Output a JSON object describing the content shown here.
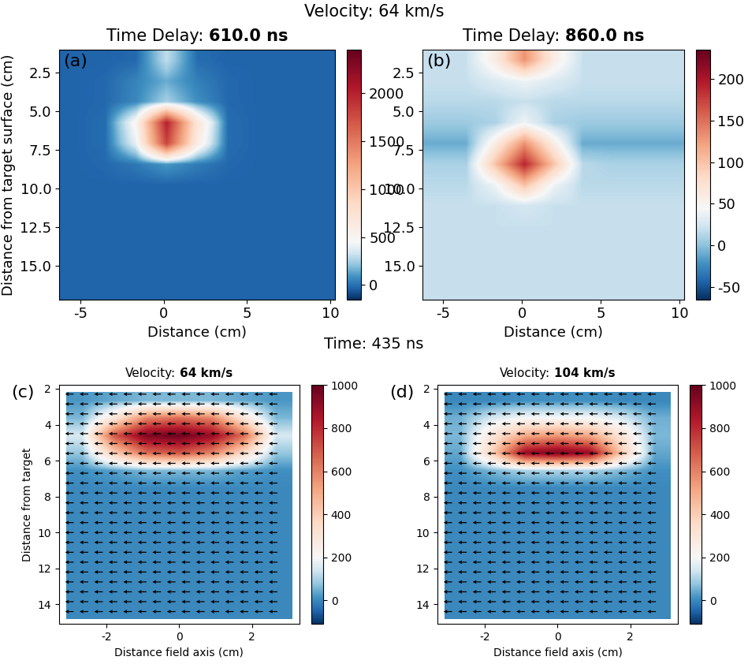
{
  "figure_title": "Velocity: 64 km/s",
  "section_title": "Time: 435 ns",
  "chart_data": [
    {
      "type": "heatmap",
      "panel": "(a)",
      "title_prefix": "Time Delay:",
      "title_value": "610.0 ns",
      "xlabel": "Distance (cm)",
      "ylabel": "Distance from target surface (cm)",
      "x_range": [
        -6.3,
        10.3
      ],
      "y_range": [
        1.0,
        17.2
      ],
      "xlim": [
        -6.3,
        10.3
      ],
      "ylim": [
        17.2,
        1.0
      ],
      "xticks": [
        -5,
        0,
        5,
        10
      ],
      "yticks": [
        2.5,
        {
          "value": 5,
          "label": "5.0"
        },
        7.5,
        {
          "value": 10,
          "label": "10.0"
        },
        12.5,
        {
          "value": 15,
          "label": "15.0"
        }
      ],
      "clim": [
        -150,
        2450
      ],
      "color_center": 450,
      "cticks": [
        0,
        500,
        1000,
        1500,
        2000
      ],
      "cells": [
        [
          -30,
          -30,
          -20,
          300,
          -10,
          -30,
          -30,
          -30,
          -30
        ],
        [
          -30,
          -20,
          50,
          150,
          40,
          -20,
          -30,
          -30,
          -30
        ],
        [
          -30,
          -20,
          60,
          250,
          80,
          -20,
          -30,
          -30,
          -30
        ],
        [
          -30,
          -10,
          500,
          2000,
          700,
          -10,
          -30,
          -30,
          -30
        ],
        [
          -30,
          -10,
          400,
          1800,
          600,
          -10,
          -30,
          -30,
          -30
        ],
        [
          -30,
          -20,
          20,
          100,
          30,
          -20,
          -30,
          -30,
          -30
        ],
        [
          -30,
          -30,
          -30,
          -30,
          -30,
          -30,
          -30,
          -30,
          -30
        ],
        [
          -30,
          -30,
          -30,
          -30,
          -30,
          -30,
          -30,
          -30,
          -30
        ],
        [
          -30,
          -30,
          -30,
          -30,
          -30,
          -30,
          -30,
          -30,
          -30
        ],
        [
          -30,
          -30,
          -30,
          -30,
          -30,
          -30,
          -30,
          -30,
          -30
        ],
        [
          -30,
          -30,
          -30,
          -30,
          -30,
          -30,
          -30,
          -30,
          -30
        ],
        [
          -30,
          -30,
          -30,
          -30,
          -30,
          -30,
          -30,
          -30,
          -30
        ]
      ]
    },
    {
      "type": "heatmap",
      "panel": "(b)",
      "title_prefix": "Time Delay:",
      "title_value": "860.0 ns",
      "xlabel": "Distance (cm)",
      "x_range": [
        -6.3,
        10.3
      ],
      "y_range": [
        1.0,
        17.2
      ],
      "xlim": [
        -6.3,
        10.3
      ],
      "ylim": [
        17.2,
        1.0
      ],
      "xticks": [
        -5,
        0,
        5,
        10
      ],
      "yticks": [
        2.5,
        {
          "value": 5,
          "label": "5.0"
        },
        7.5,
        {
          "value": 10,
          "label": "10.0"
        },
        12.5,
        {
          "value": 15,
          "label": "15.0"
        }
      ],
      "clim": [
        -65,
        235
      ],
      "color_center": 45,
      "cticks": [
        -50,
        0,
        50,
        100,
        150,
        200
      ],
      "cells": [
        [
          20,
          20,
          60,
          130,
          60,
          20,
          20,
          20,
          20
        ],
        [
          20,
          20,
          30,
          40,
          30,
          20,
          20,
          20,
          20
        ],
        [
          15,
          15,
          15,
          20,
          15,
          15,
          15,
          15,
          15
        ],
        [
          5,
          5,
          10,
          40,
          10,
          5,
          5,
          5,
          5
        ],
        [
          -10,
          -10,
          60,
          130,
          60,
          -10,
          -10,
          -10,
          -10
        ],
        [
          10,
          10,
          100,
          190,
          100,
          15,
          10,
          10,
          10
        ],
        [
          15,
          15,
          40,
          100,
          40,
          15,
          15,
          15,
          15
        ],
        [
          20,
          20,
          20,
          25,
          20,
          20,
          20,
          20,
          20
        ],
        [
          20,
          20,
          20,
          20,
          20,
          20,
          20,
          20,
          20
        ],
        [
          20,
          20,
          20,
          20,
          20,
          20,
          20,
          20,
          20
        ],
        [
          20,
          20,
          20,
          20,
          20,
          20,
          20,
          20,
          20
        ],
        [
          20,
          20,
          20,
          20,
          20,
          20,
          20,
          20,
          20
        ]
      ]
    },
    {
      "type": "heatmap",
      "panel": "(c)",
      "title_prefix": "Velocity:",
      "title_value": "64 km/s",
      "xlabel": "Distance field axis (cm)",
      "ylabel": "Distance from target",
      "x_range": [
        -3.1,
        3.1
      ],
      "y_range": [
        2.2,
        14.8
      ],
      "xlim": [
        -3.3,
        3.3
      ],
      "ylim": [
        15.1,
        1.8
      ],
      "xticks": [
        -2,
        0,
        2
      ],
      "yticks": [
        2,
        4,
        6,
        8,
        10,
        12,
        14
      ],
      "clim": [
        -110,
        1000
      ],
      "color_center": 200,
      "cticks": [
        0,
        200,
        400,
        600,
        800,
        1000
      ],
      "cells": [
        [
          20,
          40,
          60,
          60,
          60,
          40,
          20
        ],
        [
          60,
          300,
          600,
          650,
          600,
          300,
          60
        ],
        [
          150,
          700,
          950,
          980,
          900,
          650,
          150
        ],
        [
          80,
          400,
          650,
          700,
          600,
          350,
          80
        ],
        [
          10,
          30,
          60,
          60,
          60,
          30,
          10
        ],
        [
          0,
          0,
          0,
          0,
          0,
          0,
          0
        ],
        [
          0,
          0,
          0,
          0,
          0,
          0,
          0
        ],
        [
          0,
          0,
          0,
          0,
          0,
          0,
          0
        ],
        [
          0,
          0,
          0,
          0,
          0,
          0,
          0
        ],
        [
          0,
          0,
          0,
          0,
          0,
          0,
          0
        ],
        [
          0,
          0,
          0,
          0,
          0,
          0,
          0
        ],
        [
          0,
          0,
          0,
          0,
          0,
          0,
          0
        ],
        [
          0,
          0,
          0,
          0,
          0,
          0,
          0
        ]
      ],
      "arrows": {
        "x": [
          -2.9,
          -2.5,
          -2.1,
          -1.7,
          -1.3,
          -0.9,
          -0.5,
          -0.1,
          0.3,
          0.7,
          1.1,
          1.5,
          1.9,
          2.3,
          2.7
        ],
        "y": [
          2.3,
          2.85,
          3.4,
          3.95,
          4.5,
          5.05,
          5.6,
          6.15,
          6.7,
          7.25,
          7.8,
          8.35,
          8.9,
          9.45,
          10.0,
          10.55,
          11.1,
          11.65,
          12.2,
          12.75,
          13.3,
          13.85,
          14.4
        ],
        "u": -1,
        "v": 0
      }
    },
    {
      "type": "heatmap",
      "panel": "(d)",
      "title_prefix": "Velocity:",
      "title_value": "104 km/s",
      "xlabel": "Distance field axis (cm)",
      "x_range": [
        -3.1,
        3.1
      ],
      "y_range": [
        2.2,
        14.8
      ],
      "xlim": [
        -3.3,
        3.3
      ],
      "ylim": [
        15.1,
        1.8
      ],
      "xticks": [
        -2,
        0,
        2
      ],
      "yticks": [
        2,
        4,
        6,
        8,
        10,
        12,
        14
      ],
      "clim": [
        -110,
        1000
      ],
      "color_center": 200,
      "cticks": [
        0,
        200,
        400,
        600,
        800,
        1000
      ],
      "cells": [
        [
          0,
          0,
          10,
          10,
          10,
          0,
          0
        ],
        [
          50,
          150,
          200,
          200,
          200,
          150,
          50
        ],
        [
          60,
          300,
          500,
          550,
          500,
          300,
          60
        ],
        [
          40,
          400,
          900,
          950,
          900,
          400,
          40
        ],
        [
          10,
          60,
          100,
          100,
          100,
          60,
          10
        ],
        [
          0,
          0,
          0,
          0,
          0,
          0,
          0
        ],
        [
          0,
          0,
          0,
          0,
          0,
          0,
          0
        ],
        [
          0,
          0,
          0,
          0,
          0,
          0,
          0
        ],
        [
          0,
          0,
          0,
          0,
          0,
          0,
          0
        ],
        [
          0,
          0,
          0,
          0,
          0,
          0,
          0
        ],
        [
          0,
          0,
          0,
          0,
          0,
          0,
          0
        ],
        [
          0,
          0,
          0,
          0,
          0,
          0,
          0
        ],
        [
          0,
          0,
          0,
          0,
          0,
          0,
          0
        ]
      ],
      "arrows": {
        "x": [
          -2.9,
          -2.5,
          -2.1,
          -1.7,
          -1.3,
          -0.9,
          -0.5,
          -0.1,
          0.3,
          0.7,
          1.1,
          1.5,
          1.9,
          2.3,
          2.7
        ],
        "y": [
          2.3,
          2.85,
          3.4,
          3.95,
          4.5,
          5.05,
          5.6,
          6.15,
          6.7,
          7.25,
          7.8,
          8.35,
          8.9,
          9.45,
          10.0,
          10.55,
          11.1,
          11.65,
          12.2,
          12.75,
          13.3,
          13.85,
          14.4
        ],
        "u": -1,
        "v": 0
      }
    }
  ]
}
